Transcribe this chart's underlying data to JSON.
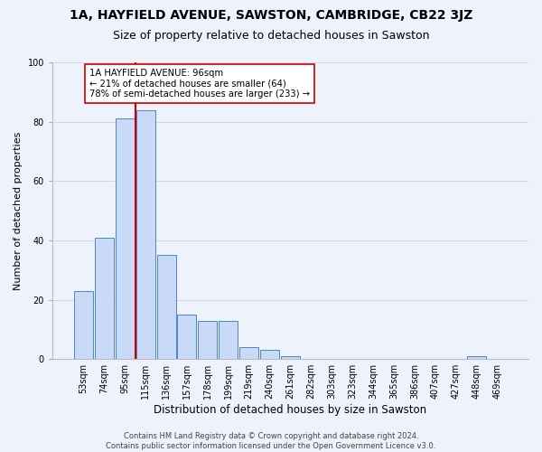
{
  "title": "1A, HAYFIELD AVENUE, SAWSTON, CAMBRIDGE, CB22 3JZ",
  "subtitle": "Size of property relative to detached houses in Sawston",
  "xlabel": "Distribution of detached houses by size in Sawston",
  "ylabel": "Number of detached properties",
  "bar_labels": [
    "53sqm",
    "74sqm",
    "95sqm",
    "115sqm",
    "136sqm",
    "157sqm",
    "178sqm",
    "199sqm",
    "219sqm",
    "240sqm",
    "261sqm",
    "282sqm",
    "303sqm",
    "323sqm",
    "344sqm",
    "365sqm",
    "386sqm",
    "407sqm",
    "427sqm",
    "448sqm",
    "469sqm"
  ],
  "bar_heights": [
    23,
    41,
    81,
    84,
    35,
    15,
    13,
    13,
    4,
    3,
    1,
    0,
    0,
    0,
    0,
    0,
    0,
    0,
    0,
    1,
    0
  ],
  "bar_color": "#c9daf8",
  "bar_edge_color": "#4a86c8",
  "vline_color": "#cc0000",
  "annotation_text_line1": "1A HAYFIELD AVENUE: 96sqm",
  "annotation_text_line2": "← 21% of detached houses are smaller (64)",
  "annotation_text_line3": "78% of semi-detached houses are larger (233) →",
  "annotation_box_color": "#ffffff",
  "annotation_box_edge_color": "#cc0000",
  "ylim": [
    0,
    100
  ],
  "yticks": [
    0,
    20,
    40,
    60,
    80,
    100
  ],
  "grid_color": "#d0d8e8",
  "background_color": "#eef2fa",
  "footer_text": "Contains HM Land Registry data © Crown copyright and database right 2024.\nContains public sector information licensed under the Open Government Licence v3.0.",
  "title_fontsize": 10,
  "subtitle_fontsize": 9,
  "xlabel_fontsize": 8.5,
  "ylabel_fontsize": 8,
  "tick_fontsize": 7,
  "footer_fontsize": 6
}
